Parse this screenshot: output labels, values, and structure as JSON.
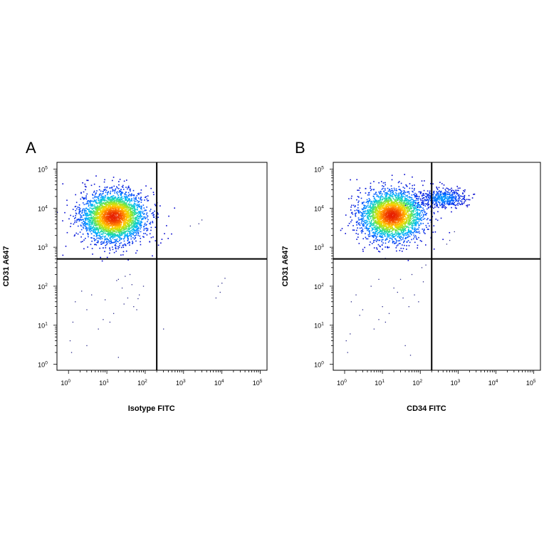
{
  "chart_data": [
    {
      "type": "scatter",
      "panel_label": "A",
      "xlabel": "Isotype FITC",
      "ylabel": "CD31 A647",
      "x_scale": "log",
      "y_scale": "log",
      "xlim": [
        0.5,
        150000
      ],
      "ylim": [
        0.7,
        150000
      ],
      "x_ticks": [
        {
          "base": "10",
          "exp": "0",
          "value": 1
        },
        {
          "base": "10",
          "exp": "1",
          "value": 10
        },
        {
          "base": "10",
          "exp": "2",
          "value": 100
        },
        {
          "base": "10",
          "exp": "3",
          "value": 1000
        },
        {
          "base": "10",
          "exp": "4",
          "value": 10000
        },
        {
          "base": "10",
          "exp": "5",
          "value": 100000
        }
      ],
      "y_ticks": [
        {
          "base": "10",
          "exp": "0",
          "value": 1
        },
        {
          "base": "10",
          "exp": "1",
          "value": 10
        },
        {
          "base": "10",
          "exp": "2",
          "value": 100
        },
        {
          "base": "10",
          "exp": "3",
          "value": 1000
        },
        {
          "base": "10",
          "exp": "4",
          "value": 10000
        },
        {
          "base": "10",
          "exp": "5",
          "value": 100000
        }
      ],
      "quadrant_gate": {
        "x": 200,
        "y": 500
      },
      "populations": [
        {
          "center": [
            15,
            6000
          ],
          "spread_decades": [
            0.42,
            0.32
          ],
          "count": 3200
        }
      ],
      "scattered_points": [
        [
          2.2,
          75
        ],
        [
          4,
          60
        ],
        [
          9,
          45
        ],
        [
          20,
          150
        ],
        [
          30,
          180
        ],
        [
          40,
          200
        ],
        [
          25,
          90
        ],
        [
          12,
          12
        ],
        [
          6,
          8
        ],
        [
          3,
          25
        ],
        [
          1.5,
          40
        ],
        [
          1.2,
          2
        ],
        [
          1.1,
          4
        ],
        [
          50,
          30
        ],
        [
          70,
          60
        ],
        [
          60,
          25
        ],
        [
          15,
          20
        ],
        [
          8,
          14
        ],
        [
          35,
          50
        ],
        [
          90,
          100
        ],
        [
          2500,
          4000
        ],
        [
          3000,
          5000
        ],
        [
          1500,
          3500
        ],
        [
          7000,
          50
        ],
        [
          8000,
          100
        ],
        [
          10000,
          120
        ],
        [
          12000,
          160
        ],
        [
          9000,
          70
        ],
        [
          300,
          8
        ],
        [
          20,
          1.5
        ],
        [
          3,
          3
        ],
        [
          1.3,
          12
        ],
        [
          18,
          140
        ],
        [
          45,
          110
        ],
        [
          28,
          35
        ],
        [
          65,
          48
        ]
      ]
    },
    {
      "type": "scatter",
      "panel_label": "B",
      "xlabel": "CD34 FITC",
      "ylabel": "CD31 A647",
      "x_scale": "log",
      "y_scale": "log",
      "xlim": [
        0.5,
        150000
      ],
      "ylim": [
        0.7,
        150000
      ],
      "x_ticks": [
        {
          "base": "10",
          "exp": "0",
          "value": 1
        },
        {
          "base": "10",
          "exp": "1",
          "value": 10
        },
        {
          "base": "10",
          "exp": "2",
          "value": 100
        },
        {
          "base": "10",
          "exp": "3",
          "value": 1000
        },
        {
          "base": "10",
          "exp": "4",
          "value": 10000
        },
        {
          "base": "10",
          "exp": "5",
          "value": 100000
        }
      ],
      "y_ticks": [
        {
          "base": "10",
          "exp": "0",
          "value": 1
        },
        {
          "base": "10",
          "exp": "1",
          "value": 10
        },
        {
          "base": "10",
          "exp": "2",
          "value": 100
        },
        {
          "base": "10",
          "exp": "3",
          "value": 1000
        },
        {
          "base": "10",
          "exp": "4",
          "value": 10000
        },
        {
          "base": "10",
          "exp": "5",
          "value": 100000
        }
      ],
      "quadrant_gate": {
        "x": 200,
        "y": 500
      },
      "populations": [
        {
          "center": [
            18,
            6500
          ],
          "spread_decades": [
            0.42,
            0.32
          ],
          "count": 3000
        },
        {
          "center": [
            400,
            18000
          ],
          "spread_decades": [
            0.3,
            0.12
          ],
          "count": 450
        }
      ],
      "scattered_points": [
        [
          2,
          60
        ],
        [
          5,
          100
        ],
        [
          10,
          30
        ],
        [
          30,
          150
        ],
        [
          60,
          200
        ],
        [
          90,
          40
        ],
        [
          25,
          70
        ],
        [
          12,
          12
        ],
        [
          6,
          8
        ],
        [
          3,
          25
        ],
        [
          1.5,
          40
        ],
        [
          1.2,
          2
        ],
        [
          1.1,
          4
        ],
        [
          50,
          30
        ],
        [
          70,
          60
        ],
        [
          120,
          130
        ],
        [
          15,
          20
        ],
        [
          8,
          14
        ],
        [
          35,
          50
        ],
        [
          140,
          350
        ],
        [
          600,
          1500
        ],
        [
          800,
          2500
        ],
        [
          500,
          1200
        ],
        [
          1.4,
          6
        ],
        [
          2.5,
          18
        ],
        [
          40,
          3
        ],
        [
          55,
          1.7
        ],
        [
          110,
          300
        ],
        [
          8,
          150
        ],
        [
          20,
          90
        ]
      ]
    }
  ],
  "colors": {
    "density_scale": [
      "#0000cc",
      "#0050ff",
      "#00b4ff",
      "#20dca0",
      "#a0e620",
      "#ffd200",
      "#ff7800",
      "#e61e00"
    ],
    "sparse_point": "#2a2a8a",
    "gate_line": "#000000"
  }
}
